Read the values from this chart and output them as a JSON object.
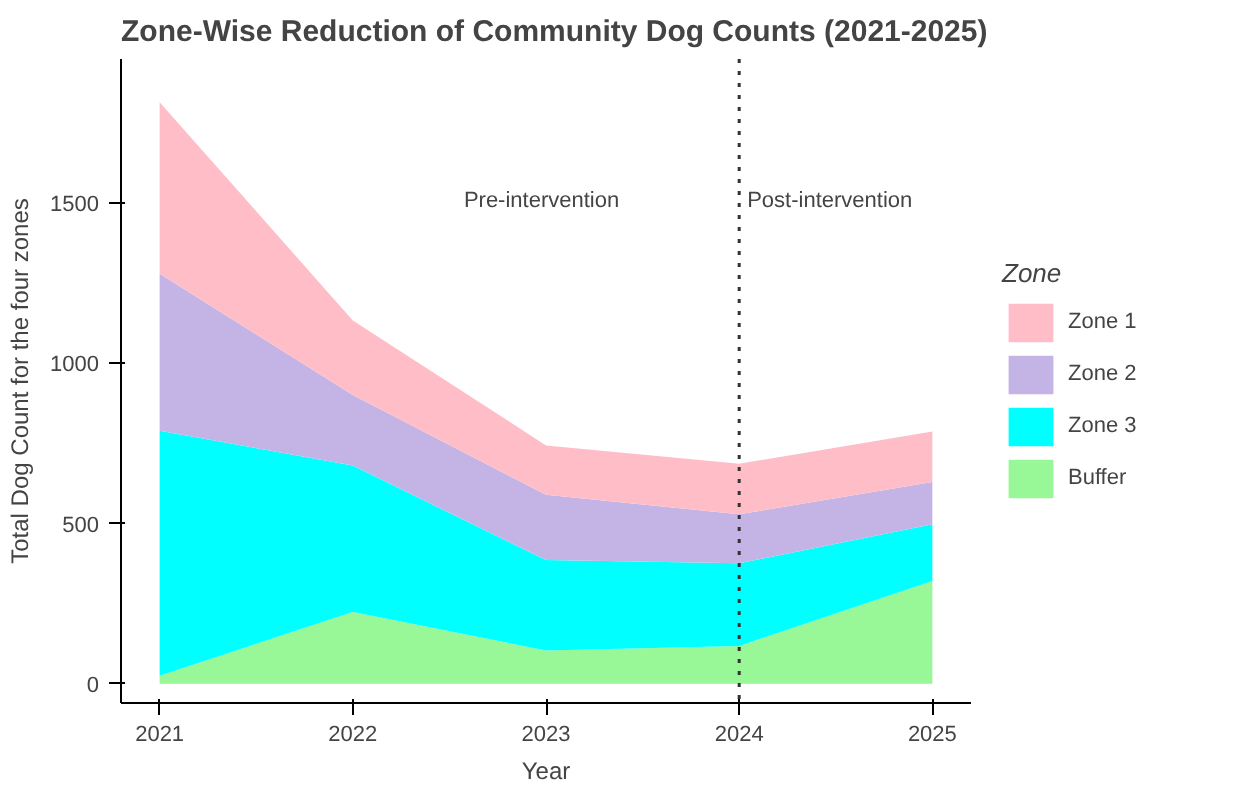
{
  "chart_data": {
    "type": "area",
    "stacked": true,
    "title": "Zone-Wise Reduction of Community Dog Counts (2021-2025)",
    "xlabel": "Year",
    "ylabel": "Total Dog Count for the four zones",
    "legend_title": "Zone",
    "legend": "right",
    "grid": false,
    "x": [
      2021,
      2022,
      2023,
      2024,
      2025
    ],
    "xlim": [
      2020.8,
      2025.2
    ],
    "xticks": [
      2021,
      2022,
      2023,
      2024,
      2025
    ],
    "ylim": [
      -60,
      1950
    ],
    "yticks": [
      0,
      500,
      1000,
      1500
    ],
    "series": [
      {
        "name": "Buffer",
        "color": "#98f898",
        "values": [
          25,
          224,
          104,
          118,
          321
        ]
      },
      {
        "name": "Zone 3",
        "color": "#00ffff",
        "values": [
          765,
          457,
          282,
          258,
          177
        ]
      },
      {
        "name": "Zone 2",
        "color": "#c4b4e6",
        "values": [
          490,
          220,
          204,
          153,
          132
        ]
      },
      {
        "name": "Zone 1",
        "color": "#ffbdc8",
        "values": [
          535,
          233,
          154,
          158,
          157
        ]
      }
    ],
    "ref_lines": [
      {
        "axis": "x",
        "value": 2024,
        "line_style": "dotted",
        "color": "#333333"
      }
    ],
    "annotations": [
      "Pre-intervention",
      "Post-intervention"
    ]
  }
}
